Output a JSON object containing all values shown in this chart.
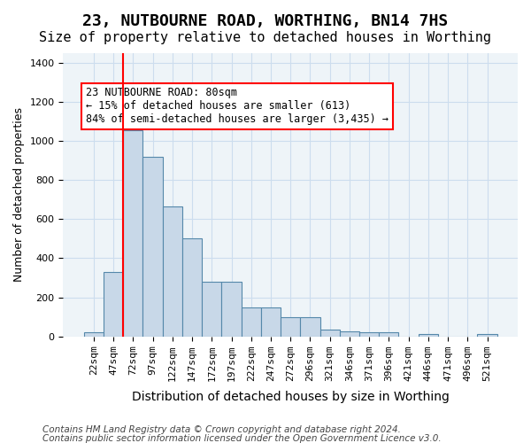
{
  "title": "23, NUTBOURNE ROAD, WORTHING, BN14 7HS",
  "subtitle": "Size of property relative to detached houses in Worthing",
  "xlabel": "Distribution of detached houses by size in Worthing",
  "ylabel": "Number of detached properties",
  "bar_labels": [
    "22sqm",
    "47sqm",
    "72sqm",
    "97sqm",
    "122sqm",
    "147sqm",
    "172sqm",
    "197sqm",
    "222sqm",
    "247sqm",
    "272sqm",
    "296sqm",
    "321sqm",
    "346sqm",
    "371sqm",
    "396sqm",
    "421sqm",
    "446sqm",
    "471sqm",
    "496sqm",
    "521sqm"
  ],
  "bar_values": [
    20,
    330,
    1055,
    920,
    665,
    500,
    280,
    280,
    150,
    150,
    100,
    100,
    35,
    25,
    20,
    20,
    0,
    10,
    0,
    0,
    10
  ],
  "bar_color": "#c8d8e8",
  "bar_edge_color": "#5588aa",
  "vline_x": 2,
  "vline_color": "red",
  "annotation_text": "23 NUTBOURNE ROAD: 80sqm\n← 15% of detached houses are smaller (613)\n84% of semi-detached houses are larger (3,435) →",
  "annotation_box_color": "white",
  "annotation_box_edge": "red",
  "ylim": [
    0,
    1450
  ],
  "yticks": [
    0,
    200,
    400,
    600,
    800,
    1000,
    1200,
    1400
  ],
  "grid_color": "#ccddee",
  "background_color": "#eef4f8",
  "footer1": "Contains HM Land Registry data © Crown copyright and database right 2024.",
  "footer2": "Contains public sector information licensed under the Open Government Licence v3.0.",
  "title_fontsize": 13,
  "subtitle_fontsize": 11,
  "xlabel_fontsize": 10,
  "ylabel_fontsize": 9,
  "tick_fontsize": 8,
  "annotation_fontsize": 8.5,
  "footer_fontsize": 7.5
}
